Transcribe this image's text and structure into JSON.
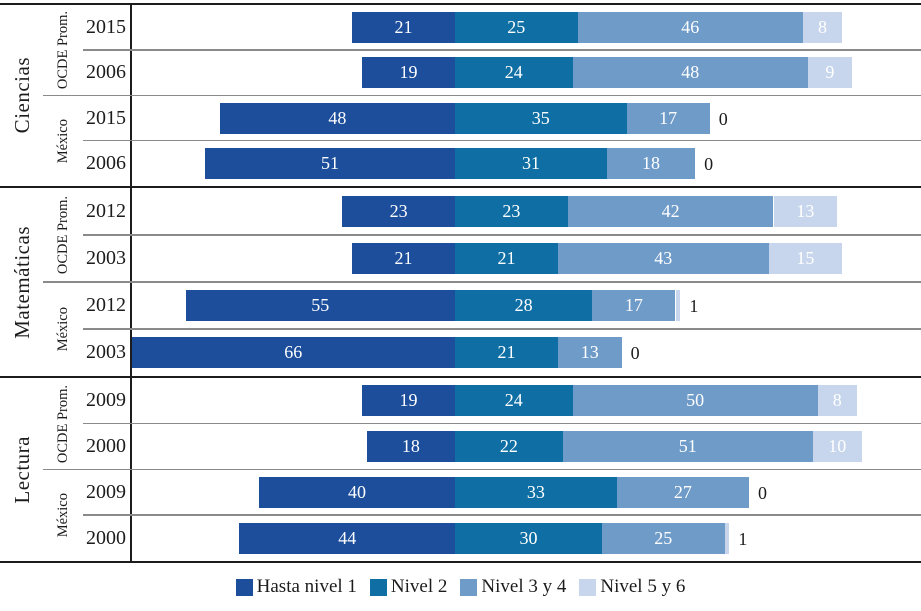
{
  "chart_data": {
    "type": "bar",
    "variant": "horizontal_stacked_diverging",
    "unit": "percent_of_students",
    "align_note": "boundary between first and second segment aligned across all rows",
    "series": [
      "Hasta nivel 1",
      "Nivel 2",
      "Nivel 3 y 4",
      "Nivel 5 y 6"
    ],
    "series_colors": [
      "#1d4e9b",
      "#0f6fa4",
      "#6f9bc9",
      "#c7d6ec"
    ],
    "axis_color": "#1c1c1c",
    "separator_color": "#8a8a8a",
    "bar_label_color": "#ffffff",
    "grid": "off",
    "legend_position": "bottom-center",
    "groups": [
      {
        "label": "Ciencias",
        "subgroups": [
          {
            "label": "OCDE Prom.",
            "rows": [
              {
                "year": "2015",
                "values": [
                  21,
                  25,
                  46,
                  8
                ],
                "outside_label": null
              },
              {
                "year": "2006",
                "values": [
                  19,
                  24,
                  48,
                  9
                ],
                "outside_label": null
              }
            ]
          },
          {
            "label": "México",
            "rows": [
              {
                "year": "2015",
                "values": [
                  48,
                  35,
                  17,
                  0
                ],
                "outside_label": "0"
              },
              {
                "year": "2006",
                "values": [
                  51,
                  31,
                  18,
                  0
                ],
                "outside_label": "0"
              }
            ]
          }
        ]
      },
      {
        "label": "Matemáticas",
        "subgroups": [
          {
            "label": "OCDE Prom.",
            "rows": [
              {
                "year": "2012",
                "values": [
                  23,
                  23,
                  42,
                  13
                ],
                "outside_label": null
              },
              {
                "year": "2003",
                "values": [
                  21,
                  21,
                  43,
                  15
                ],
                "outside_label": null
              }
            ]
          },
          {
            "label": "México",
            "rows": [
              {
                "year": "2012",
                "values": [
                  55,
                  28,
                  17,
                  1
                ],
                "outside_label": "1"
              },
              {
                "year": "2003",
                "values": [
                  66,
                  21,
                  13,
                  0
                ],
                "outside_label": "0"
              }
            ]
          }
        ]
      },
      {
        "label": "Lectura",
        "subgroups": [
          {
            "label": "OCDE Prom.",
            "rows": [
              {
                "year": "2009",
                "values": [
                  19,
                  24,
                  50,
                  8
                ],
                "outside_label": null
              },
              {
                "year": "2000",
                "values": [
                  18,
                  22,
                  51,
                  10
                ],
                "outside_label": null
              }
            ]
          },
          {
            "label": "México",
            "rows": [
              {
                "year": "2009",
                "values": [
                  40,
                  33,
                  27,
                  0
                ],
                "outside_label": "0"
              },
              {
                "year": "2000",
                "values": [
                  44,
                  30,
                  25,
                  1
                ],
                "outside_label": "1"
              }
            ]
          }
        ]
      }
    ],
    "legend": [
      {
        "label": "Hasta nivel 1",
        "color": "#1d4e9b"
      },
      {
        "label": "Nivel 2",
        "color": "#0f6fa4"
      },
      {
        "label": "Nivel 3 y 4",
        "color": "#6f9bc9"
      },
      {
        "label": "Nivel 5 y 6",
        "color": "#c7d6ec"
      }
    ]
  }
}
